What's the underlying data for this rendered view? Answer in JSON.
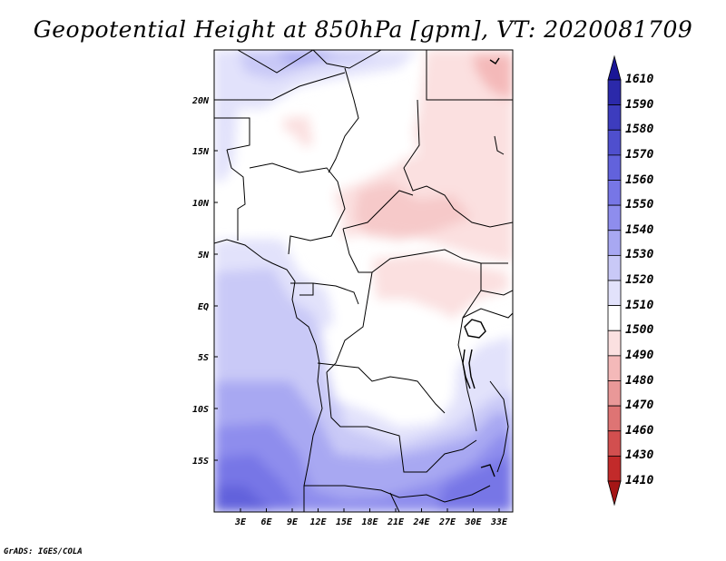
{
  "title": "Geopotential Height at 850hPa [gpm], VT: 2020081709",
  "credit": "GrADS: IGES/COLA",
  "map": {
    "lat_ticks": [
      "20N",
      "15N",
      "10N",
      "5N",
      "EQ",
      "5S",
      "10S",
      "15S"
    ],
    "lon_ticks": [
      "3E",
      "6E",
      "9E",
      "12E",
      "15E",
      "18E",
      "21E",
      "24E",
      "27E",
      "30E",
      "33E"
    ]
  },
  "colorbar": {
    "labels": [
      "1610",
      "1590",
      "1580",
      "1570",
      "1560",
      "1550",
      "1540",
      "1530",
      "1520",
      "1510",
      "1500",
      "1490",
      "1480",
      "1470",
      "1460",
      "1430",
      "1410"
    ],
    "colors": [
      "#1a1696",
      "#2b29aa",
      "#3d3cbe",
      "#4f4fce",
      "#6262dc",
      "#7776e6",
      "#8e8ded",
      "#a8a8f2",
      "#c9c9f7",
      "#e2e2fb",
      "#ffffff",
      "#fbe0e0",
      "#f4b9b9",
      "#e99898",
      "#de7474",
      "#d24f4f",
      "#c22a2a",
      "#a51616"
    ]
  }
}
